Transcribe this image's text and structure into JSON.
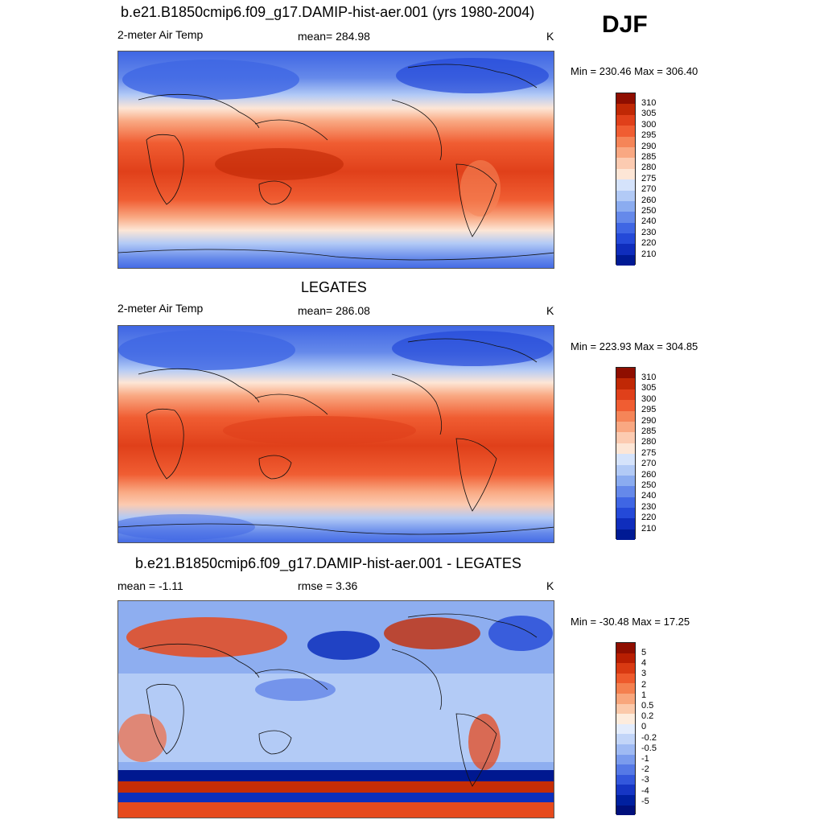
{
  "season": "DJF",
  "colors": {
    "temp_ramp": [
      "#fde6d6",
      "#fccbb1",
      "#f9a882",
      "#f58558",
      "#f05d32",
      "#e0401a",
      "#c02805",
      "#8f0e00"
    ],
    "temp_cold": [
      "#d5e3fb",
      "#b2caf6",
      "#8bacf0",
      "#6589ea",
      "#3f66e4",
      "#2449d8",
      "#0f2dbc",
      "#001a94",
      "#000c70"
    ],
    "diff_warm": [
      "#fde6d6",
      "#fbbf9f",
      "#f89370",
      "#f26a40",
      "#e64a1d",
      "#c62d06",
      "#8f0e00"
    ],
    "diff_cold": [
      "#d9e5fb",
      "#b3cbf6",
      "#8eaef0",
      "#6a8fea",
      "#4a6fe4",
      "#2a4fd8",
      "#0d2fbc",
      "#001890"
    ]
  },
  "panels": [
    {
      "title": "b.e21.B1850cmip6.f09_g17.DAMIP-hist-aer.001 (yrs 1980-2004)",
      "left_label": "2-meter Air Temp",
      "center_label": "mean= 284.98",
      "units": "K",
      "minmax": "Min = 230.46 Max = 306.40",
      "colorbar": {
        "colors": [
          "#8f0e00",
          "#c02805",
          "#e0401a",
          "#f05d32",
          "#f58558",
          "#f9a882",
          "#fccbb1",
          "#fde6d6",
          "#d5e3fb",
          "#b2caf6",
          "#8bacf0",
          "#6589ea",
          "#3f66e4",
          "#2449d8",
          "#0f2dbc",
          "#001a94"
        ],
        "labels": [
          "310",
          "305",
          "300",
          "295",
          "290",
          "285",
          "280",
          "275",
          "270",
          "260",
          "250",
          "240",
          "230",
          "220",
          "210"
        ]
      }
    },
    {
      "title": "LEGATES",
      "left_label": "2-meter Air Temp",
      "center_label": "mean= 286.08",
      "units": "K",
      "minmax": "Min = 223.93 Max = 304.85",
      "colorbar": {
        "colors": [
          "#8f0e00",
          "#c02805",
          "#e0401a",
          "#f05d32",
          "#f58558",
          "#f9a882",
          "#fccbb1",
          "#fde6d6",
          "#d5e3fb",
          "#b2caf6",
          "#8bacf0",
          "#6589ea",
          "#3f66e4",
          "#2449d8",
          "#0f2dbc",
          "#001a94"
        ],
        "labels": [
          "310",
          "305",
          "300",
          "295",
          "290",
          "285",
          "280",
          "275",
          "270",
          "260",
          "250",
          "240",
          "230",
          "220",
          "210"
        ]
      }
    },
    {
      "title": "b.e21.B1850cmip6.f09_g17.DAMIP-hist-aer.001 - LEGATES",
      "left_label": "mean =  -1.11",
      "center_label": "rmse =   3.36",
      "units": "K",
      "minmax": "Min = -30.48 Max =  17.25",
      "colorbar": {
        "colors": [
          "#8f0e00",
          "#b81e02",
          "#d93a12",
          "#ee5a2c",
          "#f4804f",
          "#f8a67c",
          "#fbc9aa",
          "#fdecdd",
          "#e3ecfc",
          "#c2d5f8",
          "#9fbaf3",
          "#7a9bed",
          "#5579e6",
          "#3357dc",
          "#1636c4",
          "#0020a0",
          "#00107c"
        ],
        "labels": [
          "5",
          "4",
          "3",
          "2",
          "1",
          "0.5",
          "0.2",
          "0",
          "-0.2",
          "-0.5",
          "-1",
          "-2",
          "-3",
          "-4",
          "-5"
        ]
      }
    }
  ]
}
